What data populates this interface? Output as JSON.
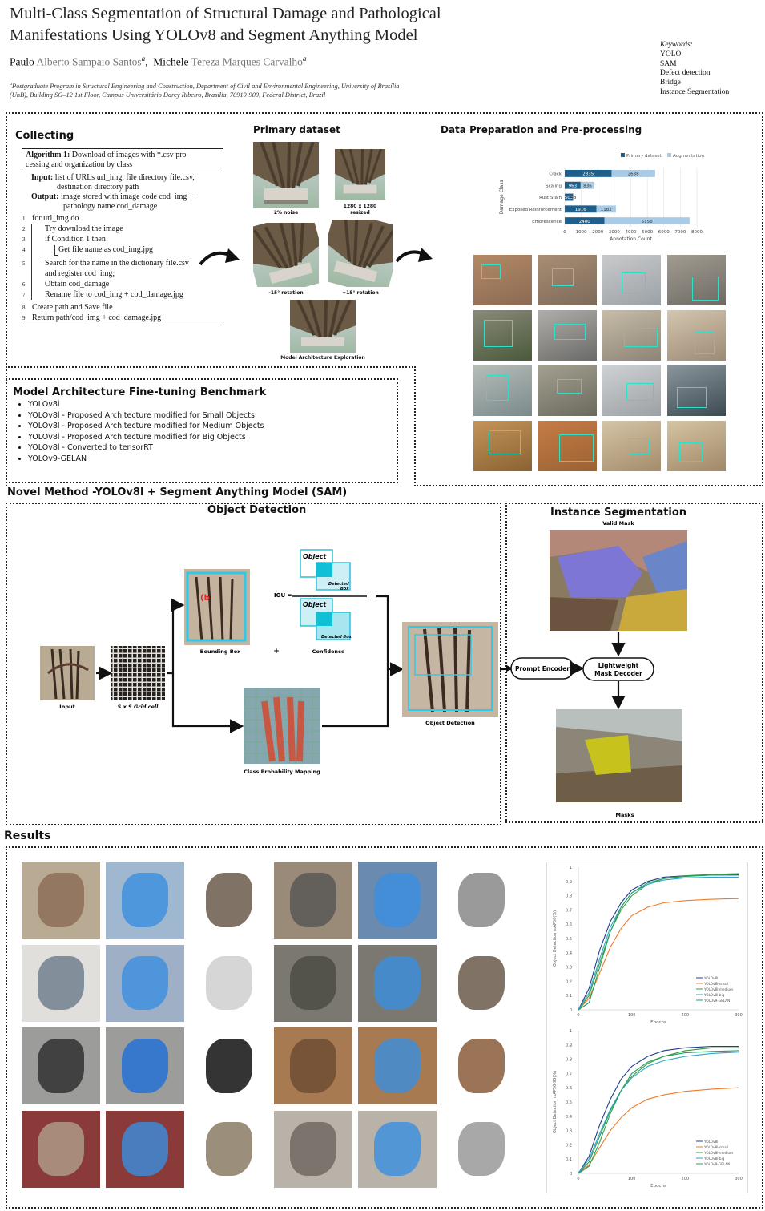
{
  "header": {
    "title_line1": "Multi-Class Segmentation of Structural Damage and Pathological",
    "title_line2": "Manifestations Using YOLOv8 and Segment Anything Model",
    "author1_first": "Paulo",
    "author1_rest": "Alberto Sampaio Santos",
    "author1_sup": "a",
    "author2_first": "Michele",
    "author2_rest": "Tereza Marques Carvalho",
    "author2_sup": "a",
    "affiliation_sup": "a",
    "affiliation_line1": "Postgraduate Program in Structural Engineering and Construction, Department of Civil and Environmental Engineering, University of Brasília",
    "affiliation_line2": "(UnB), Building SG–12 1st Floor, Campus Universitário Darcy Ribeiro, Brasília, 70910-900, Federal District, Brazil",
    "keywords_label": "Keywords:",
    "keywords": [
      "YOLO",
      "SAM",
      "Defect detection",
      "Bridge",
      "Instance Segmentation"
    ]
  },
  "collecting": {
    "title": "Collecting",
    "algo_title_bold": "Algorithm 1:",
    "algo_title_rest1": " Download of images with *.csv pro-",
    "algo_title_rest2": "cessing and organization by class",
    "input_label": "Input:",
    "input_text1": " list of URLs url_img, file directory file.csv,",
    "input_text2": "destination directory path",
    "output_label": "Output:",
    "output_text1": " image stored with image code cod_img +",
    "output_text2": "pathology name cod_damage",
    "lines": [
      {
        "n": "1",
        "text": "for url_img do"
      },
      {
        "n": "2",
        "text": "Try download the image"
      },
      {
        "n": "3",
        "text": "if Condition 1 then"
      },
      {
        "n": "4",
        "text": "Get file name as cod_img.jpg"
      },
      {
        "n": "5",
        "text": "Search for the name in the dictionary file.csv"
      },
      {
        "n": "",
        "text": "and register cod_img;"
      },
      {
        "n": "6",
        "text": "Obtain cod_damage"
      },
      {
        "n": "7",
        "text": "Rename file to cod_img + cod_damage.jpg"
      },
      {
        "n": "8",
        "text": "Create path and Save file"
      },
      {
        "n": "9",
        "text": "Return path/cod_img + cod_damage.jpg"
      }
    ]
  },
  "primary": {
    "title": "Primary dataset",
    "captions": [
      "2% noise",
      "1280 x 1280",
      "resized",
      "-15° rotation",
      "+15° rotation",
      "Model Architecture Exploration"
    ]
  },
  "prep": {
    "title": "Data Preparation and Pre-processing"
  },
  "chart_data": [
    {
      "type": "bar",
      "orientation": "horizontal",
      "stacked": true,
      "categories": [
        "Crack",
        "Scaling",
        "Rust Stain",
        "Exposed Reinforcement",
        "Efflorescence"
      ],
      "series": [
        {
          "name": "Primary dataset",
          "values": [
            2835,
            963,
            503,
            1916,
            2400
          ],
          "color": "#1f5f8b"
        },
        {
          "name": "Augmentation",
          "values": [
            2638,
            836,
            48,
            1182,
            5156
          ],
          "color": "#a9cbe6"
        }
      ],
      "xlabel": "Annotation Count",
      "ylabel": "Damage Class",
      "xlim": [
        0,
        8000
      ],
      "xticks": [
        "0",
        "1000",
        "2000",
        "3000",
        "4000",
        "5000",
        "6000",
        "7000",
        "8000"
      ],
      "legend": "top"
    },
    {
      "type": "line",
      "xlabel": "Epochs",
      "ylabel": "Object Detection mAP50(%)",
      "xlim": [
        0,
        300
      ],
      "ylim": [
        0,
        1
      ],
      "xticks": [
        "0",
        "100",
        "200",
        "300"
      ],
      "yticks": [
        "0",
        "0.1",
        "0.2",
        "0.3",
        "0.4",
        "0.5",
        "0.6",
        "0.7",
        "0.8",
        "0.9",
        "1"
      ],
      "legend": "bottom-right",
      "series": [
        {
          "name": "YOLOv8l",
          "color": "#1f3f8b",
          "x": [
            0,
            20,
            40,
            60,
            80,
            100,
            130,
            160,
            200,
            250,
            300
          ],
          "y": [
            0,
            0.15,
            0.42,
            0.62,
            0.75,
            0.84,
            0.9,
            0.93,
            0.94,
            0.945,
            0.945
          ]
        },
        {
          "name": "YOLOv8l-small",
          "color": "#f07a2a",
          "x": [
            0,
            20,
            40,
            60,
            80,
            100,
            130,
            160,
            200,
            250,
            300
          ],
          "y": [
            0,
            0.08,
            0.26,
            0.44,
            0.57,
            0.66,
            0.72,
            0.75,
            0.765,
            0.775,
            0.78
          ]
        },
        {
          "name": "YOLOv8l-medium",
          "color": "#3a9a3a",
          "x": [
            0,
            20,
            40,
            60,
            80,
            100,
            130,
            160,
            200,
            250,
            300
          ],
          "y": [
            0,
            0.1,
            0.33,
            0.55,
            0.7,
            0.8,
            0.88,
            0.92,
            0.94,
            0.95,
            0.955
          ]
        },
        {
          "name": "YOLOv8l-big",
          "color": "#2fa6c9",
          "x": [
            0,
            20,
            40,
            60,
            80,
            100,
            130,
            160,
            200,
            250,
            300
          ],
          "y": [
            0,
            0.12,
            0.36,
            0.58,
            0.72,
            0.82,
            0.88,
            0.91,
            0.925,
            0.93,
            0.93
          ]
        },
        {
          "name": "YOLOv9-GELAN",
          "color": "#22a060",
          "x": [
            0,
            20,
            40,
            60,
            80,
            100,
            130,
            160,
            200,
            250,
            300
          ],
          "y": [
            0,
            0.05,
            0.3,
            0.55,
            0.72,
            0.82,
            0.89,
            0.92,
            0.935,
            0.945,
            0.95
          ]
        }
      ]
    },
    {
      "type": "line",
      "xlabel": "Epochs",
      "ylabel": "Object Detection mAP50-95(%)",
      "xlim": [
        0,
        300
      ],
      "ylim": [
        0,
        1
      ],
      "xticks": [
        "0",
        "100",
        "200",
        "300"
      ],
      "yticks": [
        "0",
        "0.1",
        "0.2",
        "0.3",
        "0.4",
        "0.5",
        "0.6",
        "0.7",
        "0.8",
        "0.9",
        "1"
      ],
      "legend": "bottom-right",
      "series": [
        {
          "name": "YOLOv8l",
          "color": "#1f3f8b",
          "x": [
            0,
            20,
            40,
            60,
            80,
            100,
            130,
            160,
            200,
            250,
            300
          ],
          "y": [
            0,
            0.12,
            0.34,
            0.52,
            0.66,
            0.75,
            0.82,
            0.86,
            0.88,
            0.89,
            0.89
          ]
        },
        {
          "name": "YOLOv8l-small",
          "color": "#f07a2a",
          "x": [
            0,
            20,
            40,
            60,
            80,
            100,
            130,
            160,
            200,
            250,
            300
          ],
          "y": [
            0,
            0.06,
            0.18,
            0.3,
            0.39,
            0.46,
            0.52,
            0.55,
            0.575,
            0.59,
            0.6
          ]
        },
        {
          "name": "YOLOv8l-medium",
          "color": "#3a9a3a",
          "x": [
            0,
            20,
            40,
            60,
            80,
            100,
            130,
            160,
            200,
            250,
            300
          ],
          "y": [
            0,
            0.08,
            0.26,
            0.44,
            0.58,
            0.68,
            0.77,
            0.82,
            0.86,
            0.88,
            0.88
          ]
        },
        {
          "name": "YOLOv8l-big",
          "color": "#2fa6c9",
          "x": [
            0,
            20,
            40,
            60,
            80,
            100,
            130,
            160,
            200,
            250,
            300
          ],
          "y": [
            0,
            0.1,
            0.28,
            0.45,
            0.58,
            0.67,
            0.75,
            0.79,
            0.82,
            0.84,
            0.85
          ]
        },
        {
          "name": "YOLOv9-GELAN",
          "color": "#22a060",
          "x": [
            0,
            20,
            40,
            60,
            80,
            100,
            130,
            160,
            200,
            250,
            300
          ],
          "y": [
            0,
            0.05,
            0.22,
            0.42,
            0.58,
            0.7,
            0.78,
            0.82,
            0.845,
            0.855,
            0.86
          ]
        }
      ]
    }
  ],
  "benchmark": {
    "title": "Model Architecture Fine-tuning Benchmark",
    "items": [
      "YOLOv8l",
      "YOLOv8l - Proposed Architecture modified for Small Objects",
      "YOLOv8l - Proposed Architecture modified for Medium Objects",
      "YOLOv8l - Proposed Architecture modified for Big Objects",
      "YOLOv8l - Converted to tensorRT",
      "YOLOv9-GELAN"
    ]
  },
  "novel": {
    "title": "Novel Method -YOLOv8l + Segment Anything Model (SAM)",
    "od_title": "Object Detection",
    "is_title": "Instance Segmentation",
    "input": "Input",
    "grid": "S x S Grid cell",
    "bbox": "Bounding Box",
    "plus": "+",
    "confidence": "Confidence",
    "iou": "IOU =",
    "object": "Object",
    "detected_box": "Detected Box",
    "detected_box2": "Detected",
    "detected_box3": "Box",
    "bx": "(b",
    "class_prob": "Class Probability Mapping",
    "obj_det": "Object Detection",
    "valid_mask": "Valid Mask",
    "prompt_encoder": "Prompt Encoder",
    "mask_decoder1": "Lightweight",
    "mask_decoder2": "Mask Decoder",
    "masks": "Masks"
  },
  "results": {
    "title": "Results"
  }
}
